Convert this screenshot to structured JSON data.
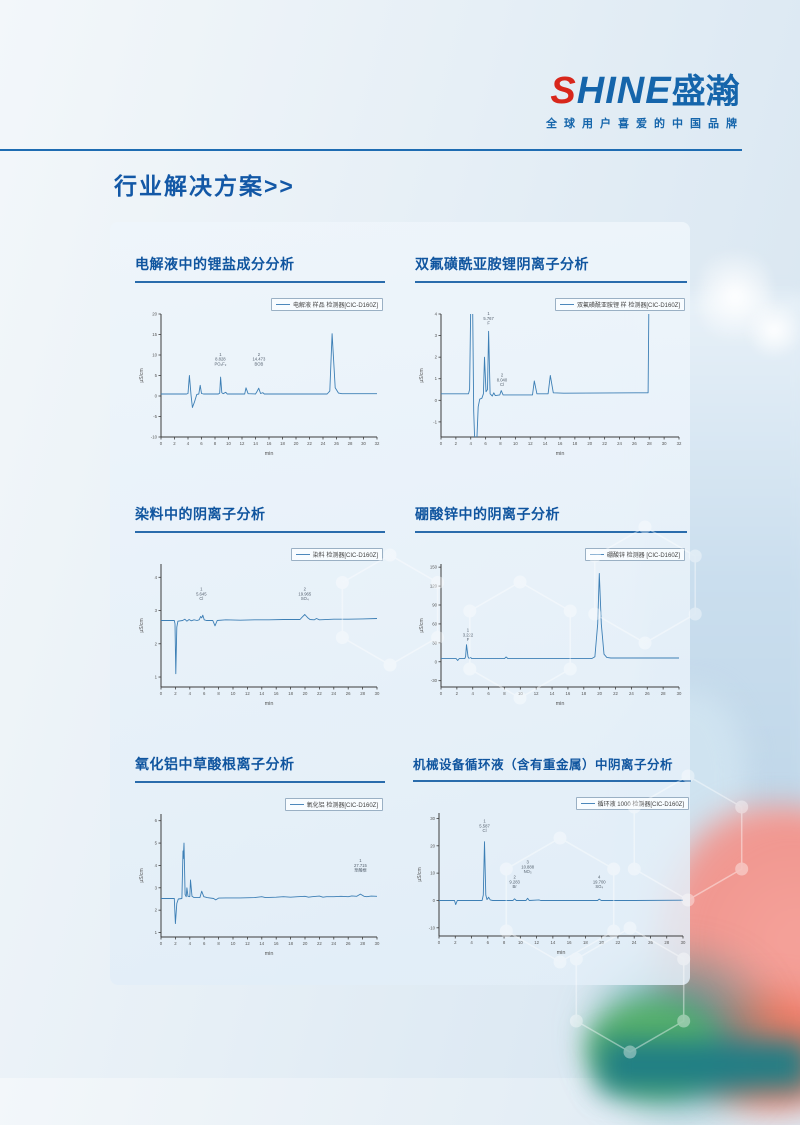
{
  "page": {
    "logo": {
      "brand_s": "S",
      "brand_rest": "HINE",
      "brand_cn": "盛瀚",
      "tagline": "全球用户喜爱的中国品牌"
    },
    "heading": "行业解决方案>>"
  },
  "colors": {
    "accent_blue": "#1565ab",
    "logo_red": "#d8261b",
    "trace_blue": "#3d7fb5",
    "rule_blue": "#1e6cb2",
    "photo_pink": "#f0968f",
    "photo_teal": "#2e8f8f",
    "photo_green": "#57b169"
  },
  "chart_data": [
    {
      "type": "line",
      "title": "电解液中的锂盐成分分析",
      "legend": "电解液 样品 检测器[CIC-D160Z]",
      "xlabel": "min",
      "ylabel": "µS/cm",
      "xlim": [
        0,
        32
      ],
      "ylim": [
        -10,
        20
      ],
      "xtick_step": 2,
      "yticks": [
        -10,
        -5,
        0,
        5,
        10,
        15,
        20
      ],
      "peaks": [
        {
          "n": "1",
          "time": "8.828",
          "ion": "PO₂F₂",
          "x": 8.8,
          "label_y": 9.8
        },
        {
          "n": "2",
          "time": "14.473",
          "ion": "BOB",
          "x": 14.5,
          "label_y": 9.8
        }
      ],
      "trace": [
        [
          0,
          0.5
        ],
        [
          3.8,
          0.5
        ],
        [
          4.0,
          0.6
        ],
        [
          4.2,
          5.0
        ],
        [
          4.45,
          0.3
        ],
        [
          4.65,
          -2.8
        ],
        [
          4.95,
          -1.5
        ],
        [
          5.3,
          0.4
        ],
        [
          5.6,
          0.5
        ],
        [
          5.8,
          2.6
        ],
        [
          6.0,
          0.6
        ],
        [
          6.3,
          0.5
        ],
        [
          8.5,
          0.5
        ],
        [
          8.7,
          0.7
        ],
        [
          8.83,
          4.6
        ],
        [
          9.0,
          0.8
        ],
        [
          9.2,
          0.55
        ],
        [
          9.6,
          0.9
        ],
        [
          9.8,
          0.5
        ],
        [
          12.4,
          0.5
        ],
        [
          12.6,
          2.0
        ],
        [
          12.9,
          0.55
        ],
        [
          14.0,
          0.5
        ],
        [
          14.2,
          1.0
        ],
        [
          14.47,
          1.9
        ],
        [
          14.75,
          0.6
        ],
        [
          15.1,
          0.8
        ],
        [
          15.3,
          0.5
        ],
        [
          24.6,
          0.5
        ],
        [
          25.0,
          1.2
        ],
        [
          25.35,
          15.2
        ],
        [
          25.8,
          2.0
        ],
        [
          26.3,
          0.7
        ],
        [
          26.8,
          0.55
        ],
        [
          32,
          0.55
        ]
      ]
    },
    {
      "type": "line",
      "title": "双氟磺酰亚胺锂阴离子分析",
      "legend": "双氟磺酰亚胺锂 样 检测器[CIC-D160Z]",
      "xlabel": "min",
      "ylabel": "µS/cm",
      "xlim": [
        0,
        32
      ],
      "ylim": [
        -1.7,
        4
      ],
      "xtick_step": 2,
      "yticks": [
        -1,
        0,
        1,
        2,
        3,
        4
      ],
      "peaks": [
        {
          "n": "1",
          "time": "5.767",
          "ion": "F",
          "x": 6.4,
          "label_y": 3.95
        },
        {
          "n": "2",
          "time": "8.040",
          "ion": "Cl",
          "x": 8.2,
          "label_y": 1.1
        }
      ],
      "trace": [
        [
          0,
          0.3
        ],
        [
          3.7,
          0.3
        ],
        [
          3.85,
          0.5
        ],
        [
          4.0,
          4.6
        ],
        [
          4.25,
          4.6
        ],
        [
          4.4,
          -0.5
        ],
        [
          4.55,
          -2.0
        ],
        [
          4.8,
          -2.0
        ],
        [
          5.0,
          -0.3
        ],
        [
          5.2,
          0.05
        ],
        [
          5.5,
          0.1
        ],
        [
          5.7,
          0.3
        ],
        [
          5.85,
          2.0
        ],
        [
          6.05,
          0.4
        ],
        [
          6.25,
          0.5
        ],
        [
          6.4,
          3.2
        ],
        [
          6.6,
          0.3
        ],
        [
          6.9,
          0.2
        ],
        [
          7.1,
          0.35
        ],
        [
          7.3,
          0.22
        ],
        [
          7.9,
          0.25
        ],
        [
          8.1,
          0.45
        ],
        [
          8.35,
          0.25
        ],
        [
          12.3,
          0.25
        ],
        [
          12.55,
          0.9
        ],
        [
          12.9,
          0.3
        ],
        [
          14.4,
          0.3
        ],
        [
          14.7,
          1.15
        ],
        [
          15.1,
          0.35
        ],
        [
          16.5,
          0.33
        ],
        [
          27.85,
          0.35
        ],
        [
          27.95,
          4.6
        ],
        [
          28.05,
          4.6
        ]
      ]
    },
    {
      "type": "line",
      "title": "染料中的阴离子分析",
      "legend": "染料 检测器[CIC-D160Z]",
      "xlabel": "min",
      "ylabel": "µS/cm",
      "xlim": [
        0,
        30
      ],
      "ylim": [
        0.7,
        4.4
      ],
      "xtick_step": 2,
      "yticks": [
        1,
        2,
        3,
        4
      ],
      "peaks": [
        {
          "n": "1",
          "time": "5.645",
          "ion": "Cl",
          "x": 5.6,
          "label_y": 3.6
        },
        {
          "n": "2",
          "time": "19.965",
          "ion": "SO₄",
          "x": 19.97,
          "label_y": 3.6
        }
      ],
      "trace": [
        [
          0,
          2.7
        ],
        [
          1.85,
          2.7
        ],
        [
          1.95,
          2.6
        ],
        [
          2.05,
          1.1
        ],
        [
          2.2,
          2.5
        ],
        [
          2.35,
          2.68
        ],
        [
          3.0,
          2.7
        ],
        [
          3.3,
          2.74
        ],
        [
          3.6,
          2.68
        ],
        [
          3.9,
          2.73
        ],
        [
          4.2,
          2.69
        ],
        [
          4.6,
          2.72
        ],
        [
          5.0,
          2.7
        ],
        [
          5.3,
          2.72
        ],
        [
          5.5,
          2.82
        ],
        [
          5.65,
          2.78
        ],
        [
          5.8,
          2.86
        ],
        [
          6.0,
          2.72
        ],
        [
          6.3,
          2.7
        ],
        [
          7.2,
          2.7
        ],
        [
          7.5,
          2.54
        ],
        [
          7.8,
          2.7
        ],
        [
          9.0,
          2.72
        ],
        [
          11,
          2.71
        ],
        [
          13,
          2.72
        ],
        [
          15,
          2.72
        ],
        [
          17,
          2.73
        ],
        [
          19.3,
          2.73
        ],
        [
          19.6,
          2.8
        ],
        [
          19.97,
          2.88
        ],
        [
          20.4,
          2.78
        ],
        [
          20.7,
          2.73
        ],
        [
          21.3,
          2.72
        ],
        [
          21.6,
          2.76
        ],
        [
          22.0,
          2.72
        ],
        [
          24,
          2.74
        ],
        [
          26,
          2.74
        ],
        [
          28,
          2.75
        ],
        [
          30,
          2.76
        ]
      ]
    },
    {
      "type": "line",
      "title": "硼酸锌中的阴离子分析",
      "legend": "硼酸锌 检测器 [CIC-D160Z]",
      "xlabel": "min",
      "ylabel": "µS/cm",
      "xlim": [
        0,
        30
      ],
      "ylim": [
        -40,
        155
      ],
      "xtick_step": 2,
      "yticks": [
        -30,
        0,
        30,
        60,
        90,
        120,
        150
      ],
      "peaks": [
        {
          "n": "1",
          "time": "3.222",
          "ion": "F",
          "x": 3.4,
          "label_y": 48
        }
      ],
      "trace": [
        [
          0,
          5
        ],
        [
          1.9,
          5
        ],
        [
          2.1,
          2
        ],
        [
          2.3,
          5
        ],
        [
          3.0,
          5
        ],
        [
          3.1,
          8
        ],
        [
          3.22,
          27
        ],
        [
          3.4,
          8
        ],
        [
          3.55,
          5
        ],
        [
          3.7,
          7
        ],
        [
          3.9,
          5
        ],
        [
          8.0,
          5
        ],
        [
          8.2,
          7.5
        ],
        [
          8.45,
          5
        ],
        [
          19.0,
          5
        ],
        [
          19.4,
          8
        ],
        [
          19.75,
          60
        ],
        [
          19.95,
          140
        ],
        [
          20.2,
          60
        ],
        [
          20.55,
          12
        ],
        [
          20.9,
          7
        ],
        [
          21.4,
          6
        ],
        [
          30,
          6
        ]
      ]
    },
    {
      "type": "line",
      "title": "氧化铝中草酸根离子分析",
      "legend": "氧化铝 检测器[CIC-D160Z]",
      "xlabel": "min",
      "ylabel": "µS/cm",
      "xlim": [
        0,
        30
      ],
      "ylim": [
        0.8,
        6.3
      ],
      "xtick_step": 2,
      "yticks": [
        1,
        2,
        3,
        4,
        5,
        6
      ],
      "peaks": [
        {
          "n": "1",
          "time": "27.715",
          "ion": "草酸根",
          "x": 27.7,
          "label_y": 4.15
        }
      ],
      "trace": [
        [
          0,
          2.52
        ],
        [
          1.85,
          2.52
        ],
        [
          2.0,
          1.4
        ],
        [
          2.2,
          2.3
        ],
        [
          2.4,
          2.5
        ],
        [
          2.9,
          2.52
        ],
        [
          3.05,
          4.65
        ],
        [
          3.1,
          4.3
        ],
        [
          3.2,
          5.0
        ],
        [
          3.35,
          2.7
        ],
        [
          3.5,
          2.6
        ],
        [
          3.6,
          3.0
        ],
        [
          3.75,
          2.62
        ],
        [
          4.0,
          2.6
        ],
        [
          4.1,
          3.35
        ],
        [
          4.3,
          2.62
        ],
        [
          4.6,
          2.56
        ],
        [
          5.4,
          2.56
        ],
        [
          5.65,
          2.85
        ],
        [
          5.95,
          2.6
        ],
        [
          6.4,
          2.56
        ],
        [
          7.3,
          2.52
        ],
        [
          7.6,
          2.46
        ],
        [
          8.0,
          2.54
        ],
        [
          9,
          2.55
        ],
        [
          11,
          2.55
        ],
        [
          13,
          2.56
        ],
        [
          14,
          2.6
        ],
        [
          14.5,
          2.56
        ],
        [
          16,
          2.58
        ],
        [
          17,
          2.6
        ],
        [
          18,
          2.58
        ],
        [
          19,
          2.6
        ],
        [
          20,
          2.62
        ],
        [
          20.5,
          2.58
        ],
        [
          21,
          2.6
        ],
        [
          22,
          2.63
        ],
        [
          22.5,
          2.58
        ],
        [
          23,
          2.6
        ],
        [
          24,
          2.6
        ],
        [
          25,
          2.62
        ],
        [
          26,
          2.6
        ],
        [
          26.5,
          2.64
        ],
        [
          27.2,
          2.62
        ],
        [
          27.7,
          2.72
        ],
        [
          28.2,
          2.62
        ],
        [
          28.6,
          2.6
        ],
        [
          29.2,
          2.63
        ],
        [
          30,
          2.62
        ]
      ]
    },
    {
      "type": "line",
      "title": "机械设备循环液（含有重金属）中阴离子分析",
      "legend": "循环液 1000 检测器[CIC-D160Z]",
      "xlabel": "min",
      "ylabel": "µS/cm",
      "xlim": [
        0,
        30
      ],
      "ylim": [
        -13,
        32
      ],
      "xtick_step": 2,
      "yticks": [
        -10,
        0,
        10,
        20,
        30
      ],
      "peaks": [
        {
          "n": "1",
          "time": "5.587",
          "ion": "Cl",
          "x": 5.6,
          "label_y": 28.5
        },
        {
          "n": "2",
          "time": "9.283",
          "ion": "Br",
          "x": 9.3,
          "label_y": 8.0
        },
        {
          "n": "3",
          "time": "10.888",
          "ion": "NO₃",
          "x": 10.9,
          "label_y": 13.5
        },
        {
          "n": "4",
          "time": "19.700",
          "ion": "SO₄",
          "x": 19.7,
          "label_y": 8.0
        }
      ],
      "trace": [
        [
          0,
          0
        ],
        [
          1.9,
          0
        ],
        [
          2.05,
          -1.5
        ],
        [
          2.25,
          0
        ],
        [
          5.3,
          0
        ],
        [
          5.45,
          2
        ],
        [
          5.59,
          21.5
        ],
        [
          5.75,
          2
        ],
        [
          5.9,
          0.3
        ],
        [
          6.1,
          1.2
        ],
        [
          6.3,
          0.2
        ],
        [
          6.6,
          0
        ],
        [
          9.1,
          0
        ],
        [
          9.28,
          0.6
        ],
        [
          9.5,
          0
        ],
        [
          10.7,
          0
        ],
        [
          10.89,
          0.8
        ],
        [
          11.1,
          0
        ],
        [
          12.3,
          0.2
        ],
        [
          12.5,
          0
        ],
        [
          19.5,
          0
        ],
        [
          19.7,
          0.5
        ],
        [
          19.95,
          0
        ],
        [
          24,
          0
        ],
        [
          30,
          0.1
        ]
      ]
    }
  ]
}
